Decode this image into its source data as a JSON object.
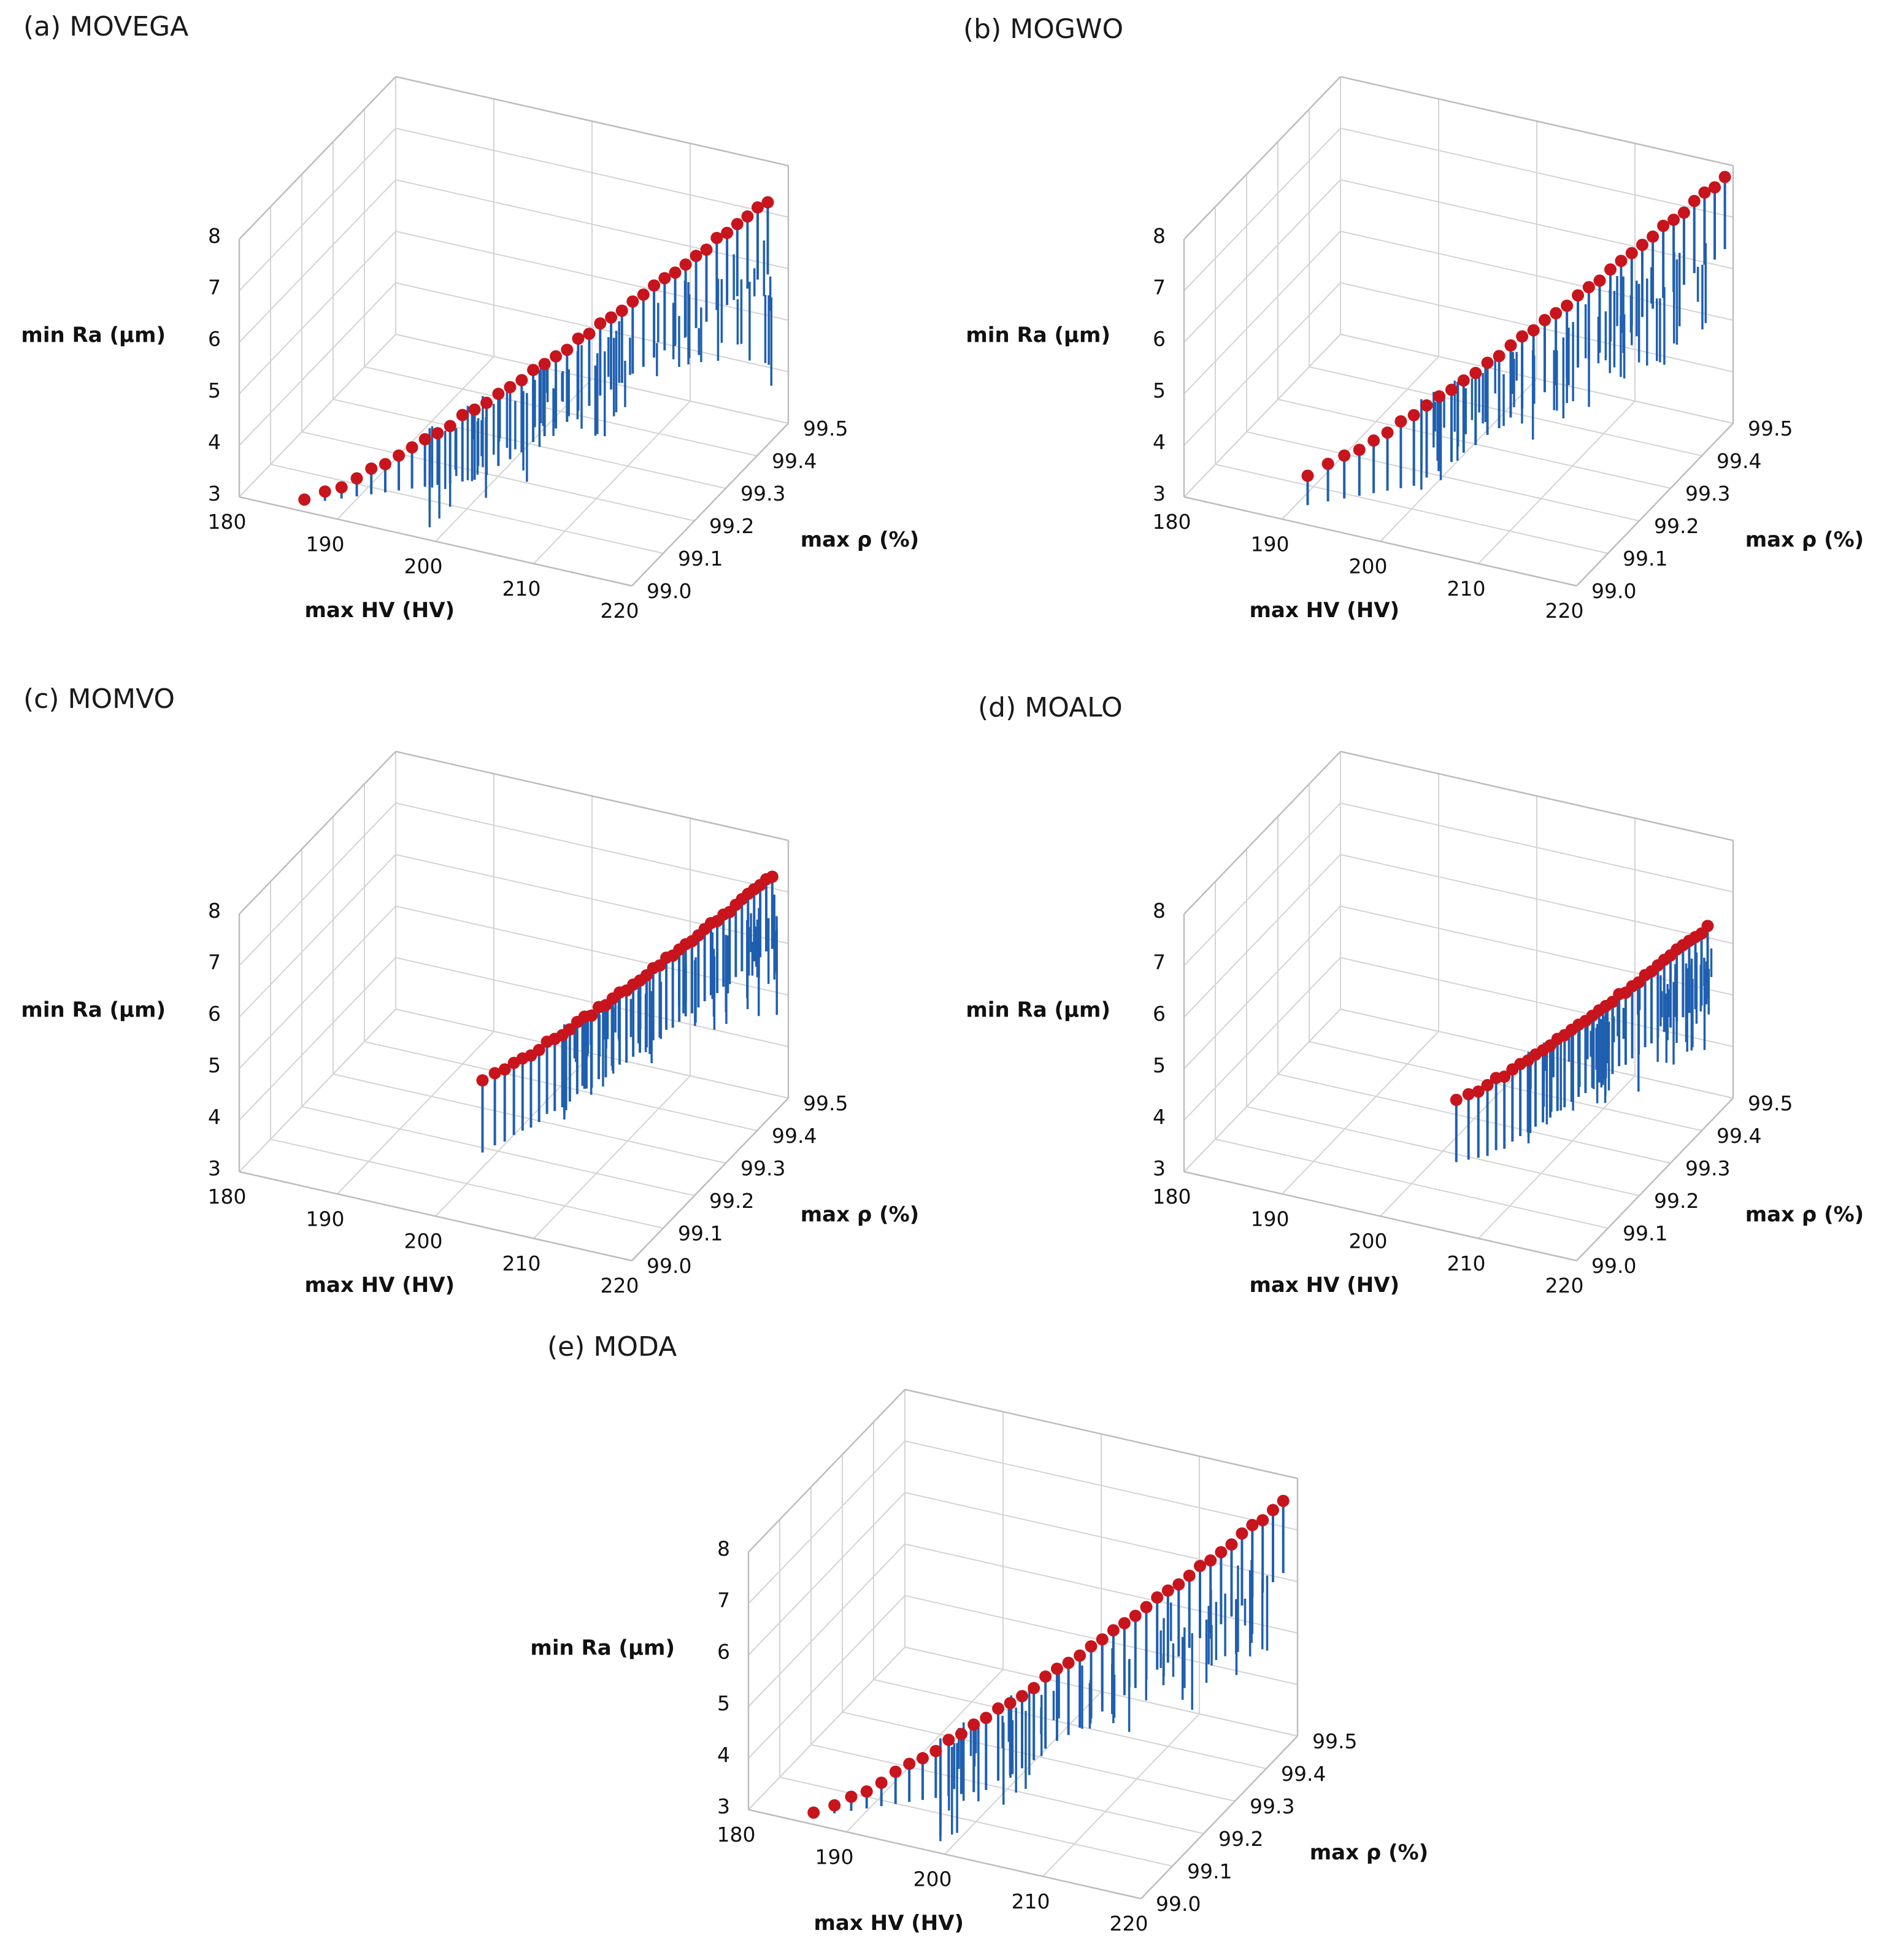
{
  "colors": {
    "stem": "#1f5fb0",
    "marker": "#c8141c",
    "grid": "#d4d4d4",
    "frame": "#bdbdbd"
  },
  "chart_data": [
    {
      "id": "a",
      "type": "scatter3d-stem",
      "title": "(a) MOVEGA",
      "xlabel": "max HV (HV)",
      "ylabel": "max ρ (%)",
      "zlabel": "min Ra (µm)",
      "xlim": [
        180,
        220
      ],
      "ylim": [
        99.0,
        99.5
      ],
      "zlim": [
        3,
        8
      ],
      "xticks": [
        "180",
        "190",
        "200",
        "210",
        "220"
      ],
      "yticks": [
        "99.0",
        "99.1",
        "99.2",
        "99.3",
        "99.4",
        "99.5"
      ],
      "zticks": [
        "3",
        "4",
        "5",
        "6",
        "7",
        "8"
      ],
      "front": {
        "x": [
          186.0,
          219.5
        ],
        "y": [
          99.02,
          99.45
        ],
        "z": [
          3.05,
          7.6
        ]
      },
      "n_points": 40
    },
    {
      "id": "b",
      "type": "scatter3d-stem",
      "title": "(b) MOGWO",
      "xlabel": "max HV (HV)",
      "ylabel": "max ρ (%)",
      "zlabel": "min Ra (µm)",
      "xlim": [
        180,
        220
      ],
      "ylim": [
        99.0,
        99.5
      ],
      "zlim": [
        3,
        8
      ],
      "xticks": [
        "180",
        "190",
        "200",
        "210",
        "220"
      ],
      "yticks": [
        "99.0",
        "99.1",
        "99.2",
        "99.3",
        "99.4",
        "99.5"
      ],
      "zticks": [
        "3",
        "4",
        "5",
        "6",
        "7",
        "8"
      ],
      "front": {
        "x": [
          191.0,
          219.8
        ],
        "y": [
          99.05,
          99.48
        ],
        "z": [
          3.6,
          7.9
        ]
      },
      "n_points": 36
    },
    {
      "id": "c",
      "type": "scatter3d-stem",
      "title": "(c) MOMVO",
      "xlabel": "max HV (HV)",
      "ylabel": "max ρ (%)",
      "zlabel": "min Ra (µm)",
      "xlim": [
        180,
        220
      ],
      "ylim": [
        99.0,
        99.5
      ],
      "zlim": [
        3,
        8
      ],
      "xticks": [
        "180",
        "190",
        "200",
        "210",
        "220"
      ],
      "yticks": [
        "99.0",
        "99.1",
        "99.2",
        "99.3",
        "99.4",
        "99.5"
      ],
      "zticks": [
        "3",
        "4",
        "5",
        "6",
        "7",
        "8"
      ],
      "front": {
        "x": [
          200.0,
          219.0
        ],
        "y": [
          99.15,
          99.48
        ],
        "z": [
          4.7,
          7.4
        ]
      },
      "n_points": 42
    },
    {
      "id": "d",
      "type": "scatter3d-stem",
      "title": "(d) MOALO",
      "xlabel": "max HV (HV)",
      "ylabel": "max ρ (%)",
      "zlabel": "min Ra (µm)",
      "xlim": [
        180,
        220
      ],
      "ylim": [
        99.0,
        99.5
      ],
      "zlim": [
        3,
        8
      ],
      "xticks": [
        "180",
        "190",
        "200",
        "210",
        "220"
      ],
      "yticks": [
        "99.0",
        "99.1",
        "99.2",
        "99.3",
        "99.4",
        "99.5"
      ],
      "zticks": [
        "3",
        "4",
        "5",
        "6",
        "7",
        "8"
      ],
      "front": {
        "x": [
          202.0,
          219.0
        ],
        "y": [
          99.18,
          99.45
        ],
        "z": [
          4.2,
          6.6
        ]
      },
      "n_points": 36
    },
    {
      "id": "e",
      "type": "scatter3d-stem",
      "title": "(e) MODA",
      "xlabel": "max HV (HV)",
      "ylabel": "max ρ (%)",
      "zlabel": "min Ra (µm)",
      "xlim": [
        180,
        220
      ],
      "ylim": [
        99.0,
        99.5
      ],
      "zlim": [
        3,
        8
      ],
      "xticks": [
        "180",
        "190",
        "200",
        "210",
        "220"
      ],
      "yticks": [
        "99.0",
        "99.1",
        "99.2",
        "99.3",
        "99.4",
        "99.5"
      ],
      "zticks": [
        "3",
        "4",
        "5",
        "6",
        "7",
        "8"
      ],
      "front": {
        "x": [
          186.0,
          219.5
        ],
        "y": [
          99.02,
          99.47
        ],
        "z": [
          3.05,
          7.7
        ]
      },
      "n_points": 40
    }
  ]
}
